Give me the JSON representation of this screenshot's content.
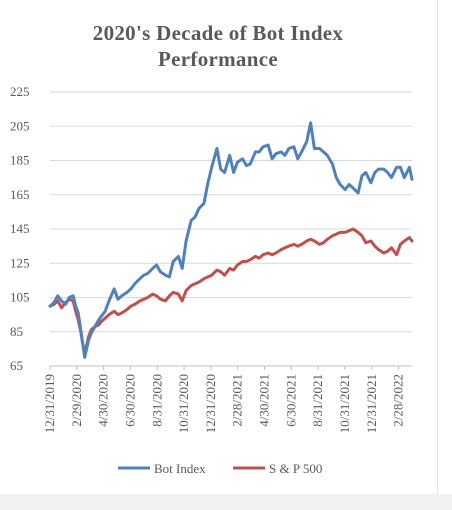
{
  "chart_data": {
    "type": "line",
    "title_lines": [
      "2020's Decade of Bot Index",
      "Performance"
    ],
    "y_ticks": [
      65,
      85,
      105,
      125,
      145,
      165,
      185,
      205,
      225
    ],
    "ylim": [
      65,
      225
    ],
    "x_ticks": [
      "12/31/2019",
      "2/29/2020",
      "4/30/2020",
      "6/30/2020",
      "8/31/2020",
      "10/31/2020",
      "12/31/2020",
      "2/28/2021",
      "4/30/2021",
      "6/30/2021",
      "8/31/2021",
      "10/31/2021",
      "12/31/2021",
      "2/28/2022"
    ],
    "x_range_months": [
      0,
      28.2
    ],
    "grid": true,
    "legend_position": "bottom",
    "series": [
      {
        "name": "Bot Index",
        "color": "#4f81bd",
        "x": [
          0,
          0.3,
          0.6,
          0.9,
          1.2,
          1.5,
          1.8,
          2.0,
          2.2,
          2.4,
          2.55,
          2.7,
          2.85,
          3.0,
          3.2,
          3.5,
          3.8,
          4.0,
          4.3,
          4.6,
          5.0,
          5.3,
          5.6,
          6.0,
          6.3,
          6.6,
          7.0,
          7.3,
          7.6,
          8.0,
          8.3,
          8.6,
          9.0,
          9.3,
          9.6,
          10.0,
          10.3,
          10.6,
          11.0,
          11.3,
          11.6,
          12.0,
          12.3,
          12.6,
          13.0,
          13.3,
          13.6,
          14.0,
          14.3,
          14.6,
          15.0,
          15.3,
          15.6,
          16.0,
          16.3,
          16.6,
          17.0,
          17.3,
          17.6,
          18.0,
          18.3,
          18.6,
          19.0,
          19.3,
          19.6,
          20.0,
          20.3,
          20.6,
          21.0,
          21.3,
          21.6,
          22.0,
          22.3,
          22.6,
          23.0,
          23.3,
          23.6,
          24.0,
          24.3,
          24.6,
          25.0,
          25.3,
          25.6,
          26.0,
          26.3,
          26.6,
          27.0,
          27.3,
          27.6,
          28.0,
          28.2
        ],
        "values": [
          100,
          102,
          106,
          103,
          101,
          105,
          106,
          100,
          96,
          86,
          78,
          70,
          75,
          80,
          84,
          88,
          92,
          94,
          97,
          103,
          110,
          104,
          106,
          108,
          110,
          113,
          116,
          118,
          119,
          122,
          124,
          120,
          118,
          117,
          126,
          129,
          122,
          138,
          150,
          152,
          157,
          160,
          172,
          181,
          192,
          180,
          178,
          188,
          178,
          184,
          186,
          182,
          183,
          190,
          190,
          193,
          194,
          186,
          189,
          190,
          188,
          192,
          193,
          186,
          190,
          196,
          207,
          192,
          192,
          190,
          188,
          183,
          175,
          171,
          168,
          171,
          169,
          166,
          176,
          178,
          172,
          178,
          180,
          180,
          178,
          175,
          181,
          181,
          175,
          181,
          174
        ]
      },
      {
        "name": "S & P 500",
        "color": "#c0504d",
        "x": [
          0,
          0.3,
          0.6,
          0.9,
          1.2,
          1.5,
          1.8,
          2.0,
          2.2,
          2.4,
          2.55,
          2.7,
          2.85,
          3.0,
          3.2,
          3.5,
          3.8,
          4.0,
          4.3,
          4.6,
          5.0,
          5.3,
          5.6,
          6.0,
          6.3,
          6.6,
          7.0,
          7.3,
          7.6,
          8.0,
          8.3,
          8.6,
          9.0,
          9.3,
          9.6,
          10.0,
          10.3,
          10.6,
          11.0,
          11.3,
          11.6,
          12.0,
          12.3,
          12.6,
          13.0,
          13.3,
          13.6,
          14.0,
          14.3,
          14.6,
          15.0,
          15.3,
          15.6,
          16.0,
          16.3,
          16.6,
          17.0,
          17.3,
          17.6,
          18.0,
          18.3,
          18.6,
          19.0,
          19.3,
          19.6,
          20.0,
          20.3,
          20.6,
          21.0,
          21.3,
          21.6,
          22.0,
          22.3,
          22.6,
          23.0,
          23.3,
          23.6,
          24.0,
          24.3,
          24.6,
          25.0,
          25.3,
          25.6,
          26.0,
          26.3,
          26.6,
          27.0,
          27.3,
          27.6,
          28.0,
          28.2
        ],
        "values": [
          100,
          101,
          103,
          99,
          102,
          104,
          103,
          97,
          92,
          85,
          78,
          73,
          77,
          82,
          86,
          88,
          89,
          91,
          93,
          95,
          97,
          95,
          96,
          98,
          100,
          101,
          103,
          104,
          105,
          107,
          106,
          104,
          103,
          106,
          108,
          107,
          103,
          109,
          112,
          113,
          114,
          116,
          117,
          118,
          121,
          120,
          118,
          122,
          121,
          124,
          126,
          126,
          127,
          129,
          128,
          130,
          131,
          130,
          131,
          133,
          134,
          135,
          136,
          135,
          136,
          138,
          139,
          138,
          136,
          137,
          139,
          141,
          142,
          143,
          143,
          144,
          145,
          143,
          141,
          137,
          138,
          135,
          133,
          131,
          132,
          134,
          130,
          136,
          138,
          140,
          138
        ]
      }
    ]
  }
}
